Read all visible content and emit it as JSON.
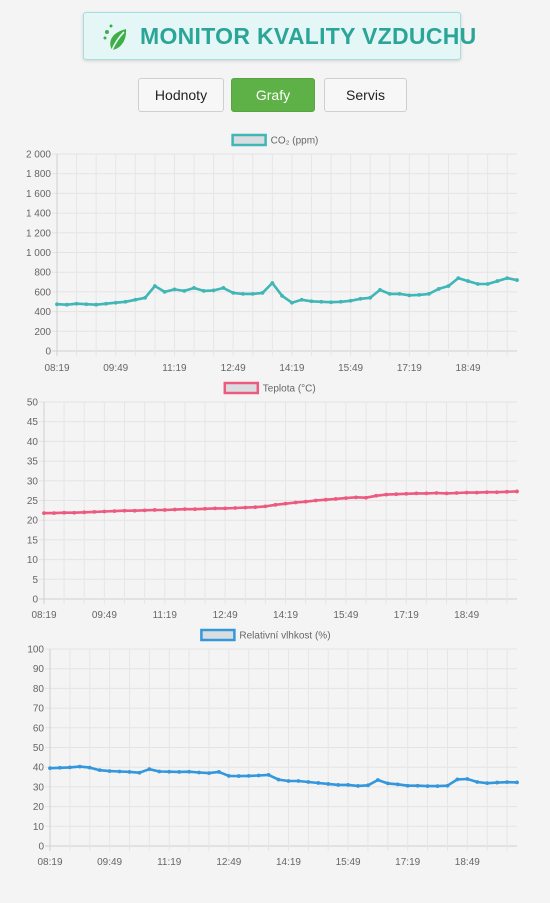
{
  "header": {
    "title": "MONITOR KVALITY VZDUCHU",
    "logo_icon": "leaf-icon"
  },
  "nav": {
    "tabs": [
      {
        "label": "Hodnoty",
        "active": false
      },
      {
        "label": "Grafy",
        "active": true
      },
      {
        "label": "Servis",
        "active": false
      }
    ]
  },
  "colors": {
    "accent": "#5db146",
    "title": "#2aa597",
    "co2": "#41b6b6",
    "temp": "#ec5a7f",
    "humidity": "#3497dc"
  },
  "chart_data": [
    {
      "type": "line",
      "legend": "CO₂ (ppm)",
      "color": "#41b6b6",
      "x_ticks": [
        "08:19",
        "09:49",
        "11:19",
        "12:49",
        "14:19",
        "15:49",
        "17:19",
        "18:49"
      ],
      "y_ticks": [
        "0",
        "200",
        "400",
        "600",
        "800",
        "1 000",
        "1 200",
        "1 400",
        "1 600",
        "1 800",
        "2 000"
      ],
      "ylim": [
        0,
        2000
      ],
      "grid": true,
      "values": [
        475,
        470,
        480,
        475,
        470,
        480,
        490,
        500,
        520,
        540,
        660,
        600,
        625,
        610,
        640,
        610,
        615,
        640,
        590,
        580,
        580,
        590,
        690,
        560,
        490,
        520,
        505,
        500,
        495,
        500,
        510,
        530,
        540,
        620,
        580,
        580,
        565,
        570,
        580,
        630,
        660,
        740,
        710,
        680,
        680,
        710,
        740,
        720
      ]
    },
    {
      "type": "line",
      "legend": "Teplota (°C)",
      "color": "#ec5a7f",
      "x_ticks": [
        "08:19",
        "09:49",
        "11:19",
        "12:49",
        "14:19",
        "15:49",
        "17:19",
        "18:49"
      ],
      "y_ticks": [
        "0",
        "5",
        "10",
        "15",
        "20",
        "25",
        "30",
        "35",
        "40",
        "45",
        "50"
      ],
      "ylim": [
        0,
        50
      ],
      "grid": true,
      "values": [
        21.8,
        21.8,
        21.9,
        21.9,
        22.0,
        22.1,
        22.2,
        22.3,
        22.4,
        22.4,
        22.5,
        22.6,
        22.6,
        22.7,
        22.8,
        22.8,
        22.9,
        23.0,
        23.0,
        23.1,
        23.2,
        23.3,
        23.5,
        23.9,
        24.2,
        24.5,
        24.7,
        25.0,
        25.2,
        25.4,
        25.6,
        25.8,
        25.7,
        26.2,
        26.5,
        26.6,
        26.7,
        26.8,
        26.8,
        26.9,
        26.8,
        26.9,
        27.0,
        27.0,
        27.1,
        27.1,
        27.2,
        27.3
      ]
    },
    {
      "type": "line",
      "legend": "Relativní vlhkost (%)",
      "color": "#3497dc",
      "x_ticks": [
        "08:19",
        "09:49",
        "11:19",
        "12:49",
        "14:19",
        "15:49",
        "17:19",
        "18:49"
      ],
      "y_ticks": [
        "0",
        "10",
        "20",
        "30",
        "40",
        "50",
        "60",
        "70",
        "80",
        "90",
        "100"
      ],
      "ylim": [
        0,
        100
      ],
      "grid": true,
      "values": [
        39.5,
        39.7,
        39.9,
        40.3,
        39.8,
        38.5,
        38.0,
        37.8,
        37.6,
        37.2,
        39.0,
        37.8,
        37.7,
        37.6,
        37.7,
        37.3,
        37.0,
        37.6,
        35.6,
        35.5,
        35.6,
        35.8,
        36.1,
        33.7,
        33.0,
        33.0,
        32.5,
        32.0,
        31.5,
        31.0,
        31.0,
        30.5,
        30.8,
        33.5,
        31.8,
        31.3,
        30.6,
        30.6,
        30.4,
        30.4,
        30.6,
        33.8,
        34.0,
        32.5,
        31.9,
        32.2,
        32.4,
        32.3
      ]
    }
  ]
}
